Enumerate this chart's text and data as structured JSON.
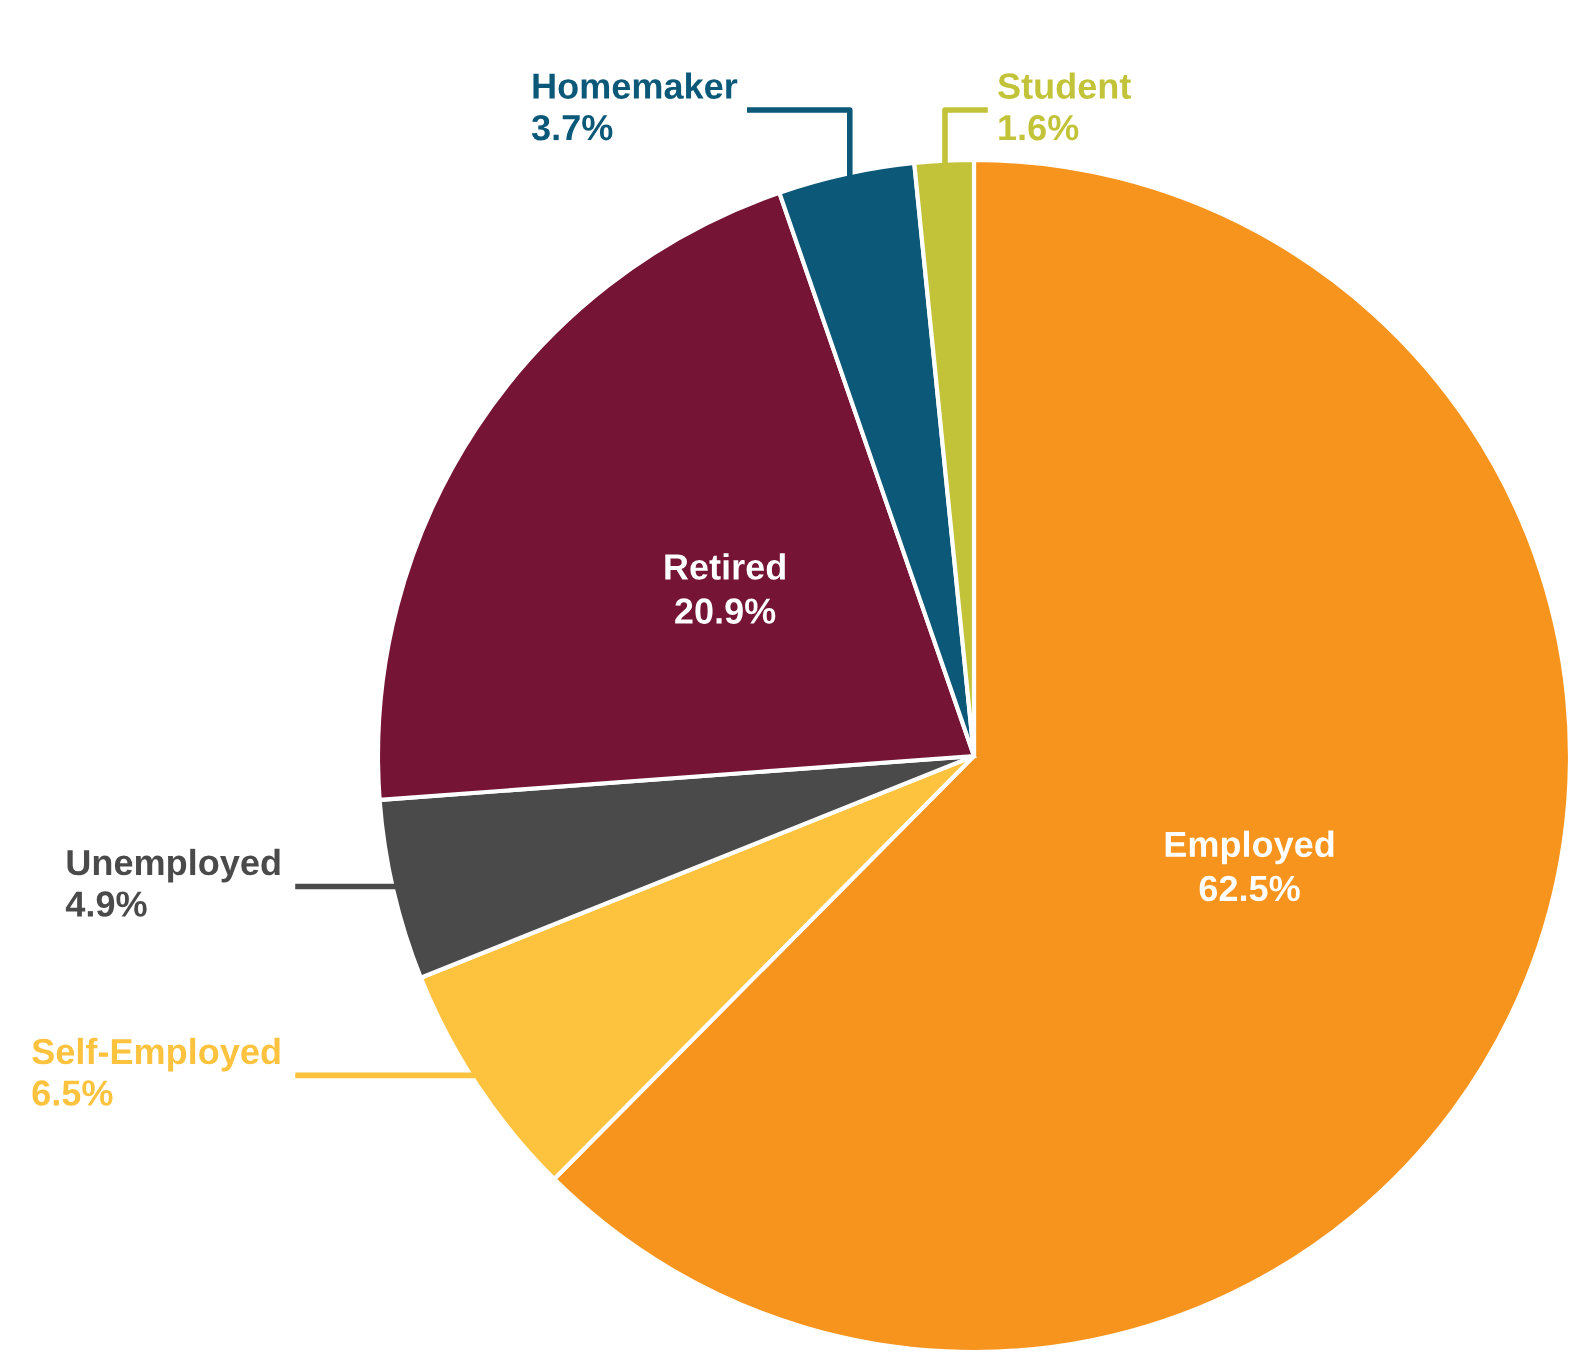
{
  "chart_data": {
    "type": "pie",
    "categories": [
      "Employed",
      "Self-Employed",
      "Unemployed",
      "Retired",
      "Homemaker",
      "Student"
    ],
    "values": [
      62.5,
      6.5,
      4.9,
      20.9,
      3.7,
      1.6
    ],
    "value_labels": [
      "62.5%",
      "6.5%",
      "4.9%",
      "20.9%",
      "3.7%",
      "1.6%"
    ],
    "colors": [
      "#f7941d",
      "#fdc23e",
      "#4a4a4a",
      "#751434",
      "#0b5878",
      "#c3c33a"
    ],
    "legend": false
  }
}
